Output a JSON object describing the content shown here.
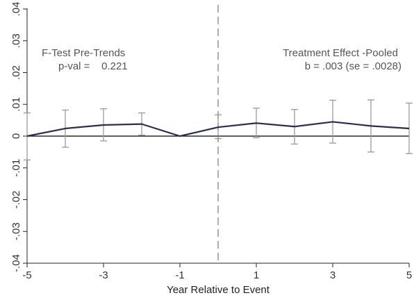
{
  "chart_data": {
    "type": "line",
    "xlabel": "Year Relative to Event",
    "ylabel": "",
    "xlim": [
      -5,
      5
    ],
    "ylim": [
      -0.04,
      0.04
    ],
    "x_ticks": [
      -5,
      -3,
      -1,
      1,
      3,
      5
    ],
    "x_tick_labels": [
      "-5",
      "-3",
      "-1",
      "1",
      "3",
      "5"
    ],
    "y_ticks": [
      -0.04,
      -0.03,
      -0.02,
      -0.01,
      0,
      0.01,
      0.02,
      0.03,
      0.04
    ],
    "y_tick_labels": [
      "-.04",
      "-.03",
      "-.02",
      "-.01",
      "0",
      ".01",
      ".02",
      ".03",
      ".04"
    ],
    "event_line_x": 0,
    "zero_line_y": 0,
    "grid": false,
    "series": [
      {
        "points": [
          {
            "x": -5,
            "y": 0.0,
            "lo": -0.0075,
            "hi": 0.0073
          },
          {
            "x": -4,
            "y": 0.0024,
            "lo": -0.0035,
            "hi": 0.0082
          },
          {
            "x": -3,
            "y": 0.0035,
            "lo": -0.0015,
            "hi": 0.0086
          },
          {
            "x": -2,
            "y": 0.0038,
            "lo": 0.0003,
            "hi": 0.0073
          },
          {
            "x": -1,
            "y": 0.0,
            "lo": null,
            "hi": null
          },
          {
            "x": 0,
            "y": 0.0028,
            "lo": -0.0008,
            "hi": 0.0067
          },
          {
            "x": 1,
            "y": 0.0041,
            "lo": -0.0005,
            "hi": 0.0088
          },
          {
            "x": 2,
            "y": 0.003,
            "lo": -0.0025,
            "hi": 0.0084
          },
          {
            "x": 3,
            "y": 0.0045,
            "lo": -0.0022,
            "hi": 0.0113
          },
          {
            "x": 4,
            "y": 0.0032,
            "lo": -0.005,
            "hi": 0.0114
          },
          {
            "x": 5,
            "y": 0.0024,
            "lo": -0.0055,
            "hi": 0.0104
          }
        ]
      }
    ],
    "colors": {
      "line": "#26304f",
      "ci": "#9a9a9a",
      "event_line": "#9a9a9a",
      "zero_line": "#000000",
      "axis": "#222222"
    },
    "annotations": {
      "pretrends_title": "F-Test Pre-Trends",
      "pretrends_value": "p-val =    0.221",
      "effect_title": "Treatment Effect -Pooled",
      "effect_value": "b = .003 (se = .0028)"
    }
  }
}
